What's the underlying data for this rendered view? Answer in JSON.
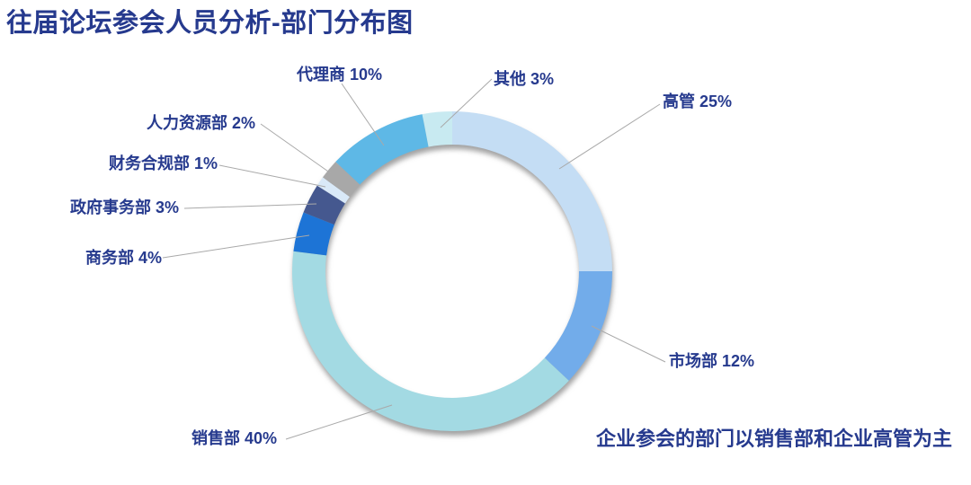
{
  "header": {
    "title": "往届论坛参会人员分析-部门分布图"
  },
  "note": {
    "text": "企业参会的部门以销售部和企业高管为主"
  },
  "colors": {
    "background": "#FFFFFF",
    "text": "#263A8E",
    "leader_line": "#A9A9A9"
  },
  "chart_data": {
    "type": "pie",
    "subtype": "donut",
    "title": "往届论坛参会人员分析-部门分布图",
    "annotation": "企业参会的部门以销售部和企业高管为主",
    "unit": "%",
    "start_angle_deg": 0,
    "direction": "clockwise",
    "donut_hole_ratio": 0.79,
    "legend_position": "none",
    "label_style": "callout-lines",
    "segments": [
      {
        "name": "高管",
        "value": 25,
        "display": "高管 25%",
        "color": "#C4DDF4"
      },
      {
        "name": "市场部",
        "value": 12,
        "display": "市场部 12%",
        "color": "#72ACEA"
      },
      {
        "name": "销售部",
        "value": 40,
        "display": "销售部 40%",
        "color": "#A3DAE3"
      },
      {
        "name": "商务部",
        "value": 4,
        "display": "商务部 4%",
        "color": "#1D74D6"
      },
      {
        "name": "政府事务部",
        "value": 3,
        "display": "政府事务部 3%",
        "color": "#45588F"
      },
      {
        "name": "财务合规部",
        "value": 1,
        "display": "财务合规部 1%",
        "color": "#D9E9F8"
      },
      {
        "name": "人力资源部",
        "value": 2,
        "display": "人力资源部 2%",
        "color": "#A8A8A8"
      },
      {
        "name": "代理商",
        "value": 10,
        "display": "代理商 10%",
        "color": "#5EB8E6"
      },
      {
        "name": "其他",
        "value": 3,
        "display": "其他 3%",
        "color": "#C8EAF1"
      }
    ]
  }
}
